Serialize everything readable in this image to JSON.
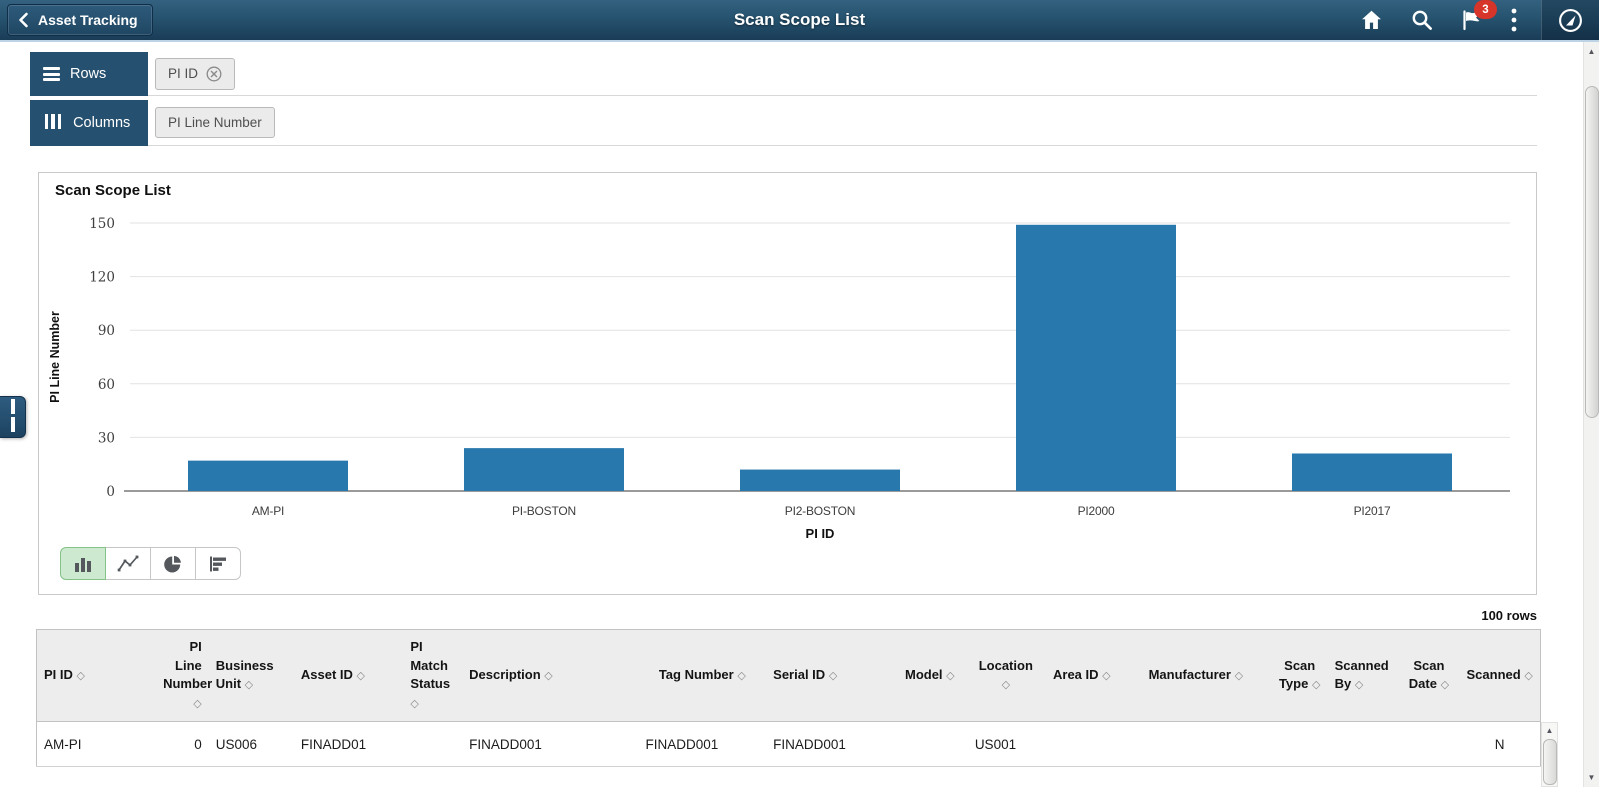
{
  "header": {
    "back_label": "Asset Tracking",
    "title": "Scan Scope List",
    "notification_badge": "3",
    "icons": [
      "back-chevron-icon",
      "home-icon",
      "search-icon",
      "notifications-flag-icon",
      "kebab-menu-icon",
      "navbar-compass-icon"
    ]
  },
  "pivot": {
    "rows_label": "Rows",
    "rows_chips": [
      {
        "label": "PI ID",
        "removable": true
      }
    ],
    "columns_label": "Columns",
    "columns_chips": [
      {
        "label": "PI Line Number",
        "removable": false
      }
    ]
  },
  "chart_data": {
    "type": "bar",
    "title": "Scan Scope List",
    "categories": [
      "AM-PI",
      "PI-BOSTON",
      "PI2-BOSTON",
      "PI2000",
      "PI2017"
    ],
    "values": [
      17,
      24,
      12,
      149,
      21
    ],
    "xlabel": "PI ID",
    "ylabel": "PI Line Number",
    "ylim": [
      0,
      150
    ],
    "ytick_step": 30,
    "yticks": [
      0,
      30,
      60,
      90,
      120,
      150
    ],
    "bar_color": "#2878ad",
    "grid": true,
    "legend": false
  },
  "chart_toolbar": {
    "selected_index": 0,
    "buttons": [
      {
        "name": "vertical-bar-chart-button",
        "icon": "vertical-bar-chart-icon"
      },
      {
        "name": "line-chart-button",
        "icon": "line-chart-icon"
      },
      {
        "name": "pie-chart-button",
        "icon": "pie-chart-icon"
      },
      {
        "name": "horizontal-bar-chart-button",
        "icon": "horizontal-bar-chart-icon"
      }
    ]
  },
  "table": {
    "rows_count": "100 rows",
    "columns": [
      {
        "label": "PI ID"
      },
      {
        "label": "PI Line Number"
      },
      {
        "label": "Business Unit"
      },
      {
        "label": "Asset ID"
      },
      {
        "label": "PI Match Status"
      },
      {
        "label": "Description"
      },
      {
        "label": "Tag Number"
      },
      {
        "label": "Serial ID"
      },
      {
        "label": "Model"
      },
      {
        "label": "Location"
      },
      {
        "label": "Area ID"
      },
      {
        "label": "Manufacturer"
      },
      {
        "label": "Scan Type"
      },
      {
        "label": "Scanned By"
      },
      {
        "label": "Scan Date"
      },
      {
        "label": "Scanned"
      }
    ],
    "sort_icon": "sort-diamond-icon",
    "rows": [
      [
        "AM-PI",
        "0",
        "US006",
        "FINADD01",
        "",
        "FINADD001",
        "FINADD001",
        "FINADD001",
        "",
        "US001",
        "",
        "",
        "",
        "",
        "",
        "N"
      ]
    ]
  },
  "colors": {
    "header_gradient_top": "#33617f",
    "header_gradient_bottom": "#1a3c57",
    "accent_navy": "#26506f",
    "bar_blue": "#2878ad",
    "selected_chart_button_green": "#cde9cf",
    "badge_red": "#d7342a",
    "table_header_gray": "#ededed"
  }
}
